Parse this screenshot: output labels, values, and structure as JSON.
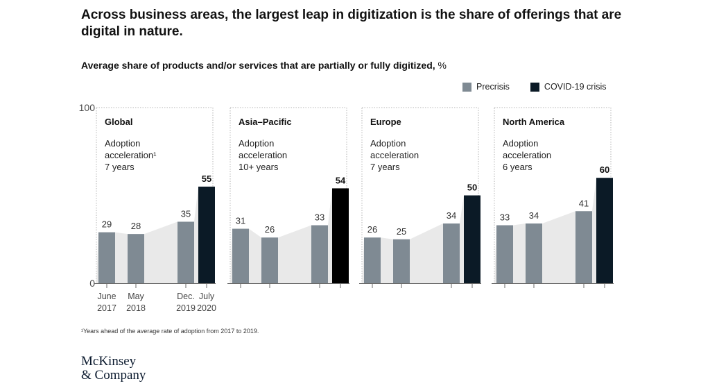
{
  "title": "Across business areas, the largest leap in digitization is the share of offerings that are digital in nature.",
  "subtitle_main": "Average share of products and/or services that are partially or fully digitized,",
  "subtitle_unit": " %",
  "legend": [
    {
      "label": "Precrisis",
      "color": "#7f8a93"
    },
    {
      "label": "COVID-19 crisis",
      "color": "#0b1a26"
    }
  ],
  "footnote": "¹Years ahead of the average rate of adoption from 2017 to 2019.",
  "logo": {
    "line1": "McKinsey",
    "line2": "& Company"
  },
  "chart_data": {
    "type": "bar",
    "y_axis": {
      "min": 0,
      "max": 100,
      "tick_labels": [
        "0",
        "100"
      ]
    },
    "x_tick_labels": [
      {
        "line1": "June",
        "line2": "2017"
      },
      {
        "line1": "May",
        "line2": "2018"
      },
      {
        "line1": "Dec.",
        "line2": "2019"
      },
      {
        "line1": "July",
        "line2": "2020"
      }
    ],
    "panels": [
      {
        "name": "Global",
        "desc_line1": "Adoption",
        "desc_line2": "acceleration¹",
        "desc_line3": "7 years",
        "values": [
          29,
          28,
          35,
          55
        ],
        "covid_colors": [
          "#7f8a93",
          "#7f8a93",
          "#7f8a93",
          "#0b1a26"
        ]
      },
      {
        "name": "Asia–Pacific",
        "desc_line1": "Adoption",
        "desc_line2": "acceleration",
        "desc_line3": "10+ years",
        "values": [
          31,
          26,
          33,
          54
        ],
        "covid_colors": [
          "#7f8a93",
          "#7f8a93",
          "#7f8a93",
          "#000000"
        ]
      },
      {
        "name": "Europe",
        "desc_line1": "Adoption",
        "desc_line2": "acceleration",
        "desc_line3": "7 years",
        "values": [
          26,
          25,
          34,
          50
        ],
        "covid_colors": [
          "#7f8a93",
          "#7f8a93",
          "#7f8a93",
          "#0b1a26"
        ]
      },
      {
        "name": "North America",
        "desc_line1": "Adoption",
        "desc_line2": "acceleration",
        "desc_line3": "6 years",
        "values": [
          33,
          34,
          41,
          60
        ],
        "covid_colors": [
          "#7f8a93",
          "#7f8a93",
          "#7f8a93",
          "#0b1a26"
        ]
      }
    ]
  }
}
